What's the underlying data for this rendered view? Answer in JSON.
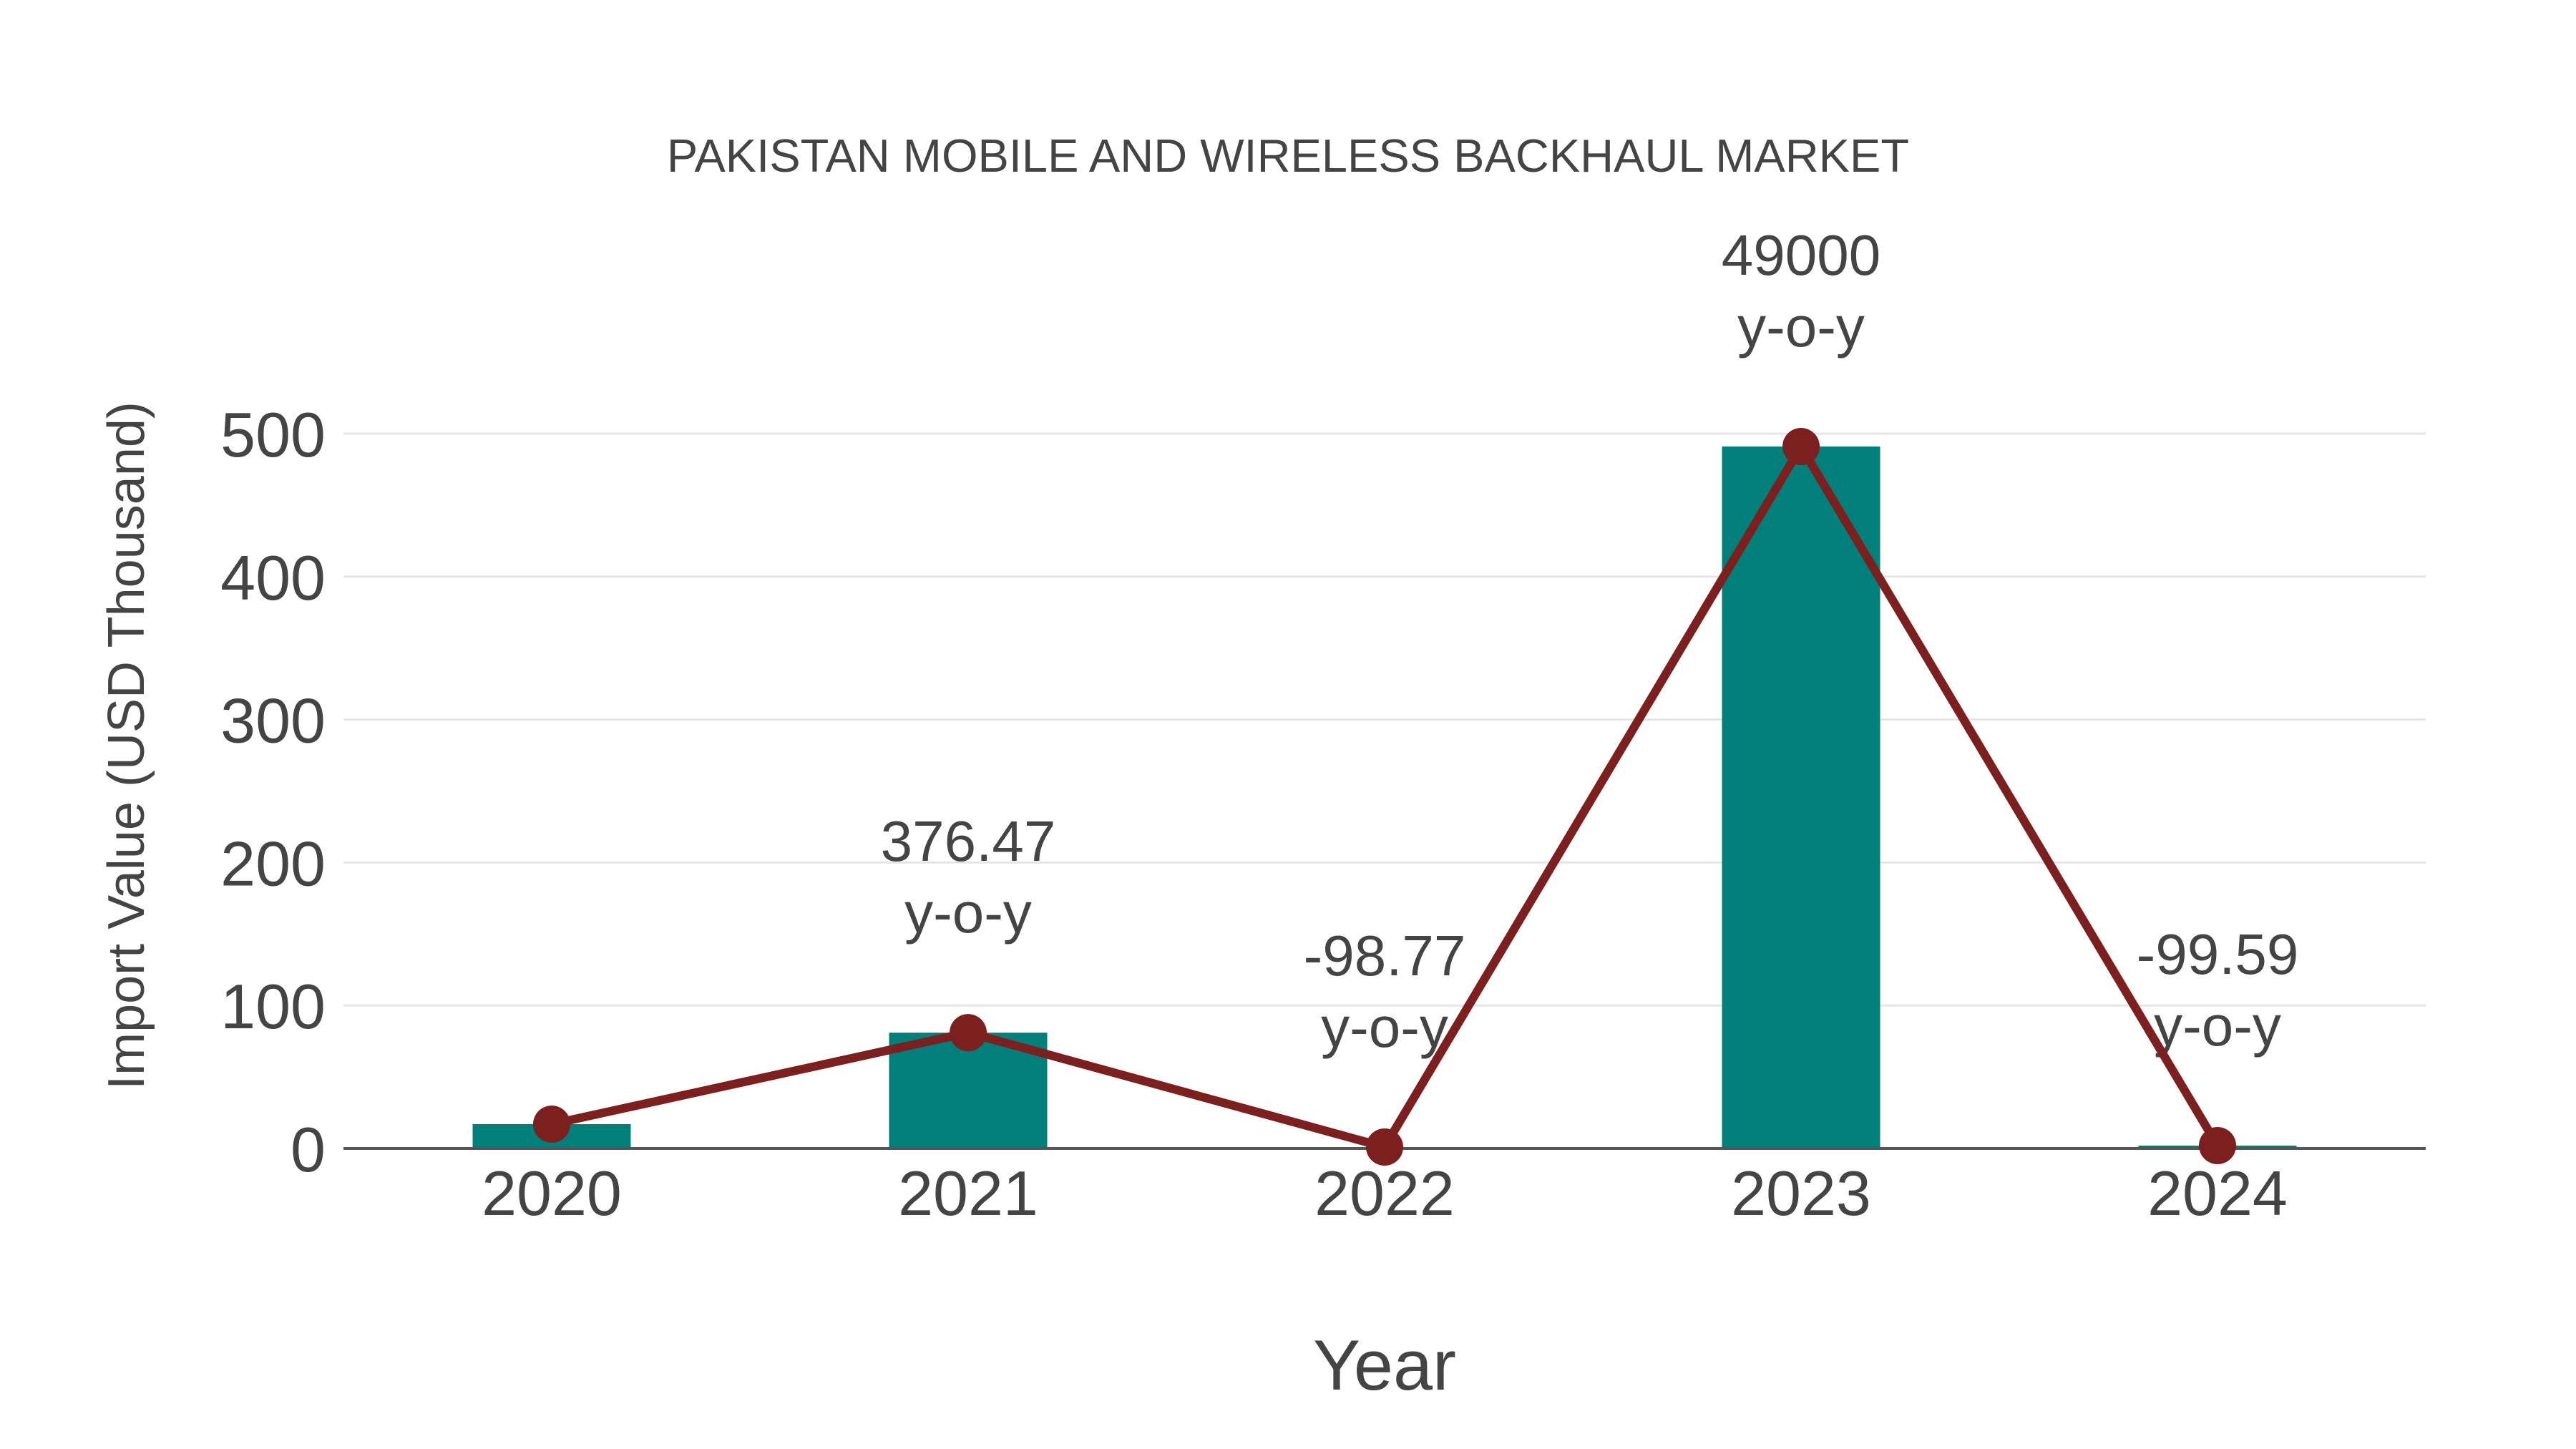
{
  "chart_data": {
    "type": "bar",
    "title": "PAKISTAN MOBILE AND WIRELESS BACKHAUL MARKET",
    "xlabel": "Year",
    "ylabel": "Import Value (USD Thousand)",
    "categories": [
      "2020",
      "2021",
      "2022",
      "2023",
      "2024"
    ],
    "series": [
      {
        "name": "Import Value",
        "type": "bar",
        "color": "#027F7A",
        "values": [
          17,
          81,
          1,
          491,
          2
        ]
      },
      {
        "name": "Trend",
        "type": "line",
        "color": "#7B1F1F",
        "values": [
          17,
          81,
          1,
          491,
          2
        ]
      }
    ],
    "annotations": [
      {
        "category": "2021",
        "value": "376.47",
        "suffix": "y-o-y"
      },
      {
        "category": "2022",
        "value": "-98.77",
        "suffix": "y-o-y"
      },
      {
        "category": "2023",
        "value": "49000",
        "suffix": "y-o-y"
      },
      {
        "category": "2024",
        "value": "-99.59",
        "suffix": "y-o-y"
      }
    ],
    "yticks": [
      0,
      100,
      200,
      300,
      400,
      500
    ],
    "ylim": [
      0,
      500
    ],
    "grid": true,
    "legend": "none"
  },
  "colors": {
    "bar": "#027F7A",
    "line": "#7B1F1F",
    "grid": "#E6E6E6",
    "axis": "#555555",
    "text": "#444444"
  }
}
